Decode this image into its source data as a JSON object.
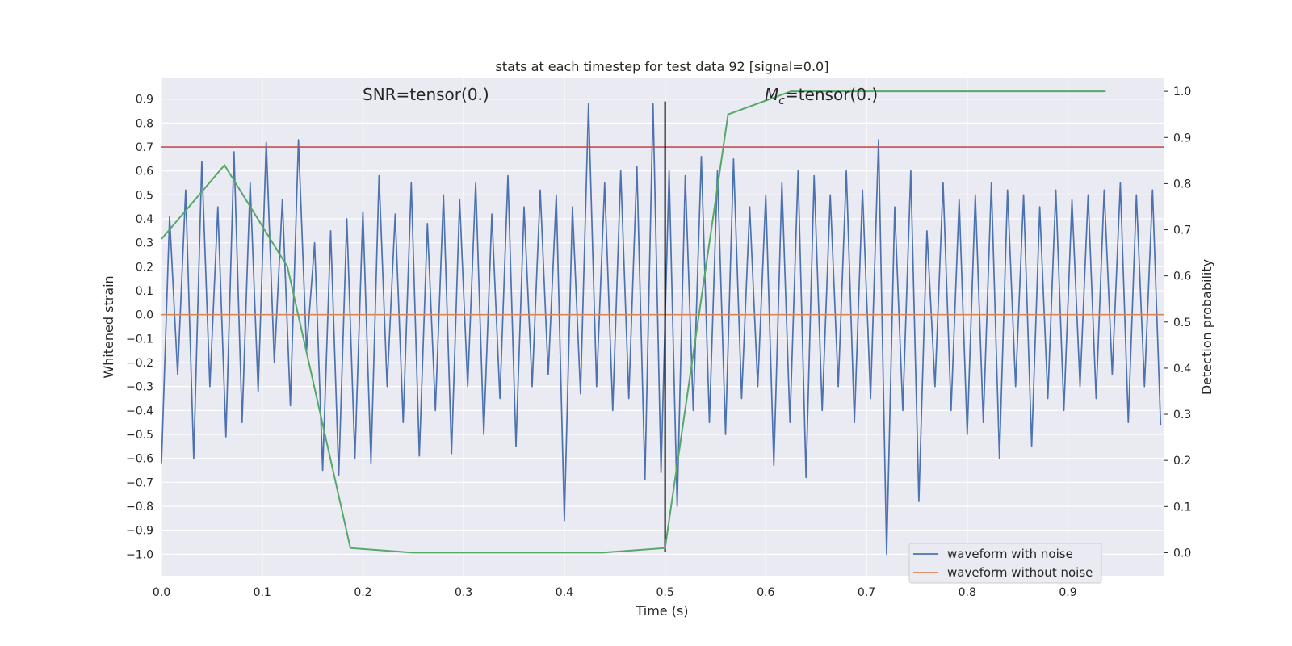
{
  "chart_data": {
    "type": "line",
    "title": "stats at each timestep for test data 92 [signal=0.0]",
    "xlabel": "Time (s)",
    "ylabel": "Whitened strain",
    "ylabel_right": "Detection probability",
    "xlim": [
      0.0,
      0.995
    ],
    "ylim": [
      -1.09,
      0.99
    ],
    "ylim_right": [
      -0.05,
      1.03
    ],
    "xticks": [
      "0.0",
      "0.1",
      "0.2",
      "0.3",
      "0.4",
      "0.5",
      "0.6",
      "0.7",
      "0.8",
      "0.9"
    ],
    "yticks": [
      "0.9",
      "0.8",
      "0.7",
      "0.6",
      "0.5",
      "0.4",
      "0.3",
      "0.2",
      "0.1",
      "0.0",
      "−0.1",
      "−0.2",
      "−0.3",
      "−0.4",
      "−0.5",
      "−0.6",
      "−0.7",
      "−0.8",
      "−0.9",
      "−1.0"
    ],
    "yticks_right": [
      "1.0",
      "0.9",
      "0.8",
      "0.7",
      "0.6",
      "0.5",
      "0.4",
      "0.3",
      "0.2",
      "0.1",
      "0.0"
    ],
    "grid": true,
    "legend_position": "lower-right",
    "annotations": {
      "snr": "SNR=tensor(0.)",
      "mc_symbol": "M",
      "mc_subscript": "c",
      "mc_rest": "=tensor(0.)"
    },
    "threshold": {
      "y": 0.7,
      "color": "#c44e52"
    },
    "vertical_marker": {
      "x": 0.5,
      "color": "#000000"
    },
    "series": [
      {
        "name": "waveform with noise",
        "color": "#4c72b0",
        "axis": "left",
        "x": [
          0.0,
          0.008,
          0.016,
          0.024,
          0.032,
          0.04,
          0.048,
          0.056,
          0.064,
          0.072,
          0.08,
          0.088,
          0.096,
          0.104,
          0.112,
          0.12,
          0.128,
          0.136,
          0.144,
          0.152,
          0.16,
          0.168,
          0.176,
          0.184,
          0.192,
          0.2,
          0.208,
          0.216,
          0.224,
          0.232,
          0.24,
          0.248,
          0.256,
          0.264,
          0.272,
          0.28,
          0.288,
          0.296,
          0.304,
          0.312,
          0.32,
          0.328,
          0.336,
          0.344,
          0.352,
          0.36,
          0.368,
          0.376,
          0.384,
          0.392,
          0.4,
          0.408,
          0.416,
          0.424,
          0.432,
          0.44,
          0.448,
          0.456,
          0.464,
          0.472,
          0.48,
          0.488,
          0.496,
          0.504,
          0.512,
          0.52,
          0.528,
          0.536,
          0.544,
          0.552,
          0.56,
          0.568,
          0.576,
          0.584,
          0.592,
          0.6,
          0.608,
          0.616,
          0.624,
          0.632,
          0.64,
          0.648,
          0.656,
          0.664,
          0.672,
          0.68,
          0.688,
          0.696,
          0.704,
          0.712,
          0.72,
          0.728,
          0.736,
          0.744,
          0.752,
          0.76,
          0.768,
          0.776,
          0.784,
          0.792,
          0.8,
          0.808,
          0.816,
          0.824,
          0.832,
          0.84,
          0.848,
          0.856,
          0.864,
          0.872,
          0.88,
          0.888,
          0.896,
          0.904,
          0.912,
          0.92,
          0.928,
          0.936,
          0.944,
          0.952,
          0.96,
          0.968,
          0.976,
          0.984,
          0.992
        ],
        "values": [
          -0.62,
          0.41,
          -0.25,
          0.52,
          -0.6,
          0.64,
          -0.3,
          0.45,
          -0.51,
          0.68,
          -0.45,
          0.55,
          -0.32,
          0.72,
          -0.2,
          0.48,
          -0.38,
          0.73,
          -0.15,
          0.3,
          -0.65,
          0.35,
          -0.67,
          0.4,
          -0.6,
          0.43,
          -0.62,
          0.58,
          -0.3,
          0.42,
          -0.45,
          0.55,
          -0.59,
          0.38,
          -0.4,
          0.5,
          -0.58,
          0.48,
          -0.3,
          0.55,
          -0.5,
          0.42,
          -0.35,
          0.58,
          -0.55,
          0.45,
          -0.3,
          0.52,
          -0.25,
          0.5,
          -0.86,
          0.45,
          -0.33,
          0.88,
          -0.3,
          0.55,
          -0.4,
          0.6,
          -0.35,
          0.62,
          -0.69,
          0.88,
          -0.66,
          0.6,
          -0.8,
          0.58,
          -0.4,
          0.66,
          -0.45,
          0.6,
          -0.5,
          0.65,
          -0.35,
          0.45,
          -0.3,
          0.5,
          -0.63,
          0.55,
          -0.45,
          0.6,
          -0.68,
          0.58,
          -0.4,
          0.5,
          -0.3,
          0.6,
          -0.45,
          0.52,
          -0.35,
          0.73,
          -1.0,
          0.45,
          -0.4,
          0.6,
          -0.78,
          0.35,
          -0.3,
          0.55,
          -0.4,
          0.48,
          -0.5,
          0.5,
          -0.45,
          0.55,
          -0.6,
          0.52,
          -0.3,
          0.5,
          -0.55,
          0.45,
          -0.35,
          0.52,
          -0.4,
          0.48,
          -0.3,
          0.5,
          -0.35,
          0.52,
          -0.25,
          0.55,
          -0.45,
          0.5,
          -0.3,
          0.52,
          -0.46
        ]
      },
      {
        "name": "waveform without noise",
        "color": "#dd8452",
        "axis": "left",
        "x": [
          0.0,
          0.995
        ],
        "values": [
          0.0,
          0.0
        ]
      },
      {
        "name": "",
        "color": "#55a868",
        "axis": "right",
        "x": [
          0.0,
          0.0625,
          0.125,
          0.1875,
          0.25,
          0.3125,
          0.375,
          0.4375,
          0.5,
          0.5625,
          0.625,
          0.6875,
          0.75,
          0.8125,
          0.875,
          0.9375
        ],
        "values": [
          0.68,
          0.84,
          0.62,
          0.01,
          0.0,
          0.0,
          0.0,
          0.0,
          0.01,
          0.95,
          1.0,
          1.0,
          1.0,
          1.0,
          1.0,
          1.0
        ]
      }
    ]
  }
}
